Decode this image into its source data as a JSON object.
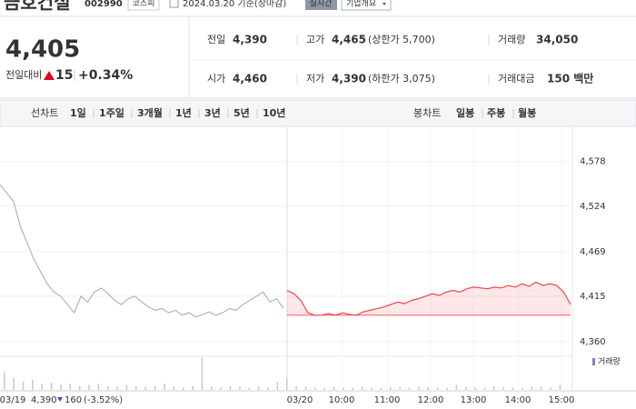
{
  "header": {
    "title": "금호건설",
    "code": "002990",
    "market": "코스피",
    "date": "2024.03.20 기준(장마감)",
    "realtime": "실시간",
    "company": "기업개요"
  },
  "quote": {
    "price": "4,405",
    "change_label": "전일대비",
    "change": "15",
    "change_pct": "+0.34%",
    "stats": [
      {
        "label": "전일",
        "value": "4,390"
      },
      {
        "label": "고가",
        "value": "4,465",
        "note": "(상한가 5,700)"
      },
      {
        "label": "거래량",
        "value": "34,050"
      },
      {
        "label": "시가",
        "value": "4,460"
      },
      {
        "label": "저가",
        "value": "4,390",
        "note": "(하한가 3,075)"
      },
      {
        "label": "거래대금",
        "value": "150 백만"
      }
    ]
  },
  "toolbar": {
    "line_chart": "선차트",
    "periods": [
      "1일",
      "1주일",
      "3개월",
      "1년",
      "3년",
      "5년",
      "10년"
    ],
    "candle_chart": "봉차트",
    "candle_periods": [
      "일봉",
      "주봉",
      "월봉"
    ]
  },
  "chart": {
    "type": "line",
    "ylim": [
      4350,
      4592
    ],
    "yticks": [
      {
        "value": 4578,
        "label": "4,578"
      },
      {
        "value": 4524,
        "label": "4,524"
      },
      {
        "value": 4469,
        "label": "4,469"
      },
      {
        "value": 4415,
        "label": "4,415"
      },
      {
        "value": 4360,
        "label": "4,360"
      }
    ],
    "x_labels": [
      "03/19",
      "03/20",
      "10:00",
      "11:00",
      "12:00",
      "13:00",
      "14:00",
      "15:00"
    ],
    "series": [
      {
        "color": "#b4b4b4",
        "values": [
          4550,
          4540,
          4530,
          4500,
          4480,
          4460,
          4445,
          4430,
          4420,
          4415,
          4405,
          4395,
          4415,
          4408,
          4420,
          4425,
          4418,
          4410,
          4405,
          4412,
          4415,
          4408,
          4402,
          4398,
          4400,
          4395,
          4398,
          4392,
          4395,
          4390,
          4393,
          4396,
          4392,
          4395,
          4400,
          4398,
          4405,
          4410,
          4415,
          4420,
          4408,
          4412,
          4400
        ]
      },
      {
        "color": "#f0464b",
        "values": [
          4422,
          4418,
          4410,
          4395,
          4392,
          4392,
          4394,
          4392,
          4395,
          4393,
          4392,
          4396,
          4398,
          4400,
          4402,
          4405,
          4408,
          4406,
          4410,
          4412,
          4415,
          4418,
          4416,
          4420,
          4422,
          4420,
          4424,
          4426,
          4425,
          4424,
          4426,
          4425,
          4428,
          4426,
          4430,
          4427,
          4432,
          4428,
          4430,
          4428,
          4420,
          4405
        ]
      }
    ],
    "volume": [
      900,
      600,
      400,
      500,
      300,
      350,
      250,
      300,
      200,
      250,
      300,
      200,
      150,
      250,
      200,
      150,
      200,
      300,
      150,
      120,
      200,
      1600,
      150,
      120,
      200,
      150,
      100,
      150,
      120,
      400,
      600,
      200,
      150,
      120,
      100,
      150,
      120,
      100,
      150,
      120,
      100,
      130,
      120,
      100,
      150,
      130,
      120,
      100,
      250,
      150,
      120,
      100,
      200,
      150,
      120,
      100,
      150,
      130,
      120,
      250
    ],
    "volume_label": "거래량",
    "prev_summary": {
      "price": "4,390",
      "change": "160",
      "change_pct": "(-3.52%)"
    }
  }
}
